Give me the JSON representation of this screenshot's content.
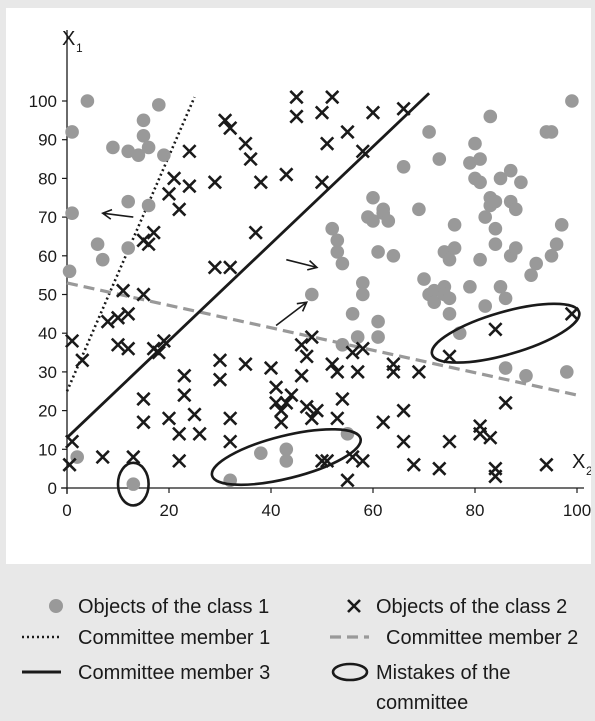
{
  "chart_data": {
    "type": "scatter",
    "axes": {
      "y_label_main": "X",
      "y_label_sub": "1",
      "x_label_main": "X",
      "x_label_sub": "2",
      "xlim": [
        0,
        100
      ],
      "ylim": [
        0,
        100
      ],
      "x_ticks": [
        0,
        20,
        40,
        60,
        80,
        100
      ],
      "y_ticks": [
        0,
        10,
        20,
        30,
        40,
        50,
        60,
        70,
        80,
        90,
        100
      ]
    },
    "colors": {
      "class1": "#999999",
      "class2": "#1a1a1a",
      "member1": "#1a1a1a",
      "member2": "#999999",
      "member3": "#1a1a1a"
    },
    "series": [
      {
        "name": "Objects of the class 1",
        "marker": "circle",
        "points": [
          [
            0.5,
            56
          ],
          [
            1,
            71
          ],
          [
            1,
            92
          ],
          [
            2,
            8
          ],
          [
            4,
            100
          ],
          [
            6,
            63
          ],
          [
            7,
            59
          ],
          [
            9,
            88
          ],
          [
            12,
            62
          ],
          [
            12,
            87
          ],
          [
            12,
            74
          ],
          [
            13,
            1
          ],
          [
            14,
            86
          ],
          [
            15,
            91
          ],
          [
            15,
            95
          ],
          [
            16,
            88
          ],
          [
            16,
            73
          ],
          [
            18,
            99
          ],
          [
            19,
            86
          ],
          [
            32,
            2
          ],
          [
            38,
            9
          ],
          [
            43,
            10
          ],
          [
            43,
            7
          ],
          [
            48,
            50
          ],
          [
            52,
            67
          ],
          [
            53,
            64
          ],
          [
            53,
            61
          ],
          [
            54,
            58
          ],
          [
            54,
            37
          ],
          [
            55,
            14
          ],
          [
            56,
            45
          ],
          [
            57,
            39
          ],
          [
            58,
            50
          ],
          [
            58,
            53
          ],
          [
            59,
            70
          ],
          [
            60,
            69
          ],
          [
            60,
            75
          ],
          [
            61,
            61
          ],
          [
            61,
            43
          ],
          [
            61,
            39
          ],
          [
            62,
            71
          ],
          [
            62,
            72
          ],
          [
            63,
            69
          ],
          [
            64,
            60
          ],
          [
            66,
            83
          ],
          [
            69,
            72
          ],
          [
            70,
            54
          ],
          [
            71,
            92
          ],
          [
            71,
            50
          ],
          [
            72,
            51
          ],
          [
            72,
            48
          ],
          [
            73,
            85
          ],
          [
            74,
            52
          ],
          [
            74,
            50
          ],
          [
            74,
            61
          ],
          [
            75,
            49
          ],
          [
            75,
            45
          ],
          [
            75,
            59
          ],
          [
            76,
            62
          ],
          [
            76,
            68
          ],
          [
            77,
            40
          ],
          [
            79,
            84
          ],
          [
            79,
            52
          ],
          [
            80,
            80
          ],
          [
            80,
            89
          ],
          [
            81,
            79
          ],
          [
            81,
            85
          ],
          [
            81,
            59
          ],
          [
            82,
            47
          ],
          [
            82,
            70
          ],
          [
            83,
            75
          ],
          [
            83,
            73
          ],
          [
            83,
            96
          ],
          [
            84,
            74
          ],
          [
            84,
            67
          ],
          [
            84,
            63
          ],
          [
            85,
            52
          ],
          [
            85,
            80
          ],
          [
            86,
            49
          ],
          [
            86,
            31
          ],
          [
            87,
            74
          ],
          [
            87,
            82
          ],
          [
            87,
            60
          ],
          [
            88,
            72
          ],
          [
            88,
            62
          ],
          [
            89,
            79
          ],
          [
            90,
            29
          ],
          [
            91,
            55
          ],
          [
            92,
            58
          ],
          [
            94,
            92
          ],
          [
            95,
            92
          ],
          [
            95,
            60
          ],
          [
            96,
            63
          ],
          [
            97,
            68
          ],
          [
            98,
            30
          ],
          [
            99,
            100
          ]
        ]
      },
      {
        "name": "Objects of the class 2",
        "marker": "cross",
        "points": [
          [
            0.5,
            6
          ],
          [
            1,
            12
          ],
          [
            1,
            38
          ],
          [
            3,
            33
          ],
          [
            7,
            8
          ],
          [
            8,
            43
          ],
          [
            10,
            44
          ],
          [
            10,
            37
          ],
          [
            11,
            51
          ],
          [
            12,
            45
          ],
          [
            12,
            36
          ],
          [
            13,
            8
          ],
          [
            15,
            17
          ],
          [
            15,
            23
          ],
          [
            15,
            50
          ],
          [
            15,
            64
          ],
          [
            16,
            63
          ],
          [
            17,
            66
          ],
          [
            17,
            36
          ],
          [
            18,
            35
          ],
          [
            19,
            38
          ],
          [
            20,
            18
          ],
          [
            20,
            76
          ],
          [
            21,
            80
          ],
          [
            22,
            72
          ],
          [
            22,
            14
          ],
          [
            22,
            7
          ],
          [
            23,
            29
          ],
          [
            23,
            24
          ],
          [
            24,
            78
          ],
          [
            24,
            87
          ],
          [
            25,
            19
          ],
          [
            26,
            14
          ],
          [
            29,
            57
          ],
          [
            29,
            79
          ],
          [
            30,
            28
          ],
          [
            30,
            33
          ],
          [
            31,
            95
          ],
          [
            32,
            18
          ],
          [
            32,
            12
          ],
          [
            32,
            57
          ],
          [
            32,
            93
          ],
          [
            35,
            89
          ],
          [
            35,
            32
          ],
          [
            36,
            85
          ],
          [
            37,
            66
          ],
          [
            38,
            79
          ],
          [
            40,
            31
          ],
          [
            41,
            26
          ],
          [
            41,
            22
          ],
          [
            42,
            17
          ],
          [
            42,
            20
          ],
          [
            43,
            81
          ],
          [
            43,
            22
          ],
          [
            44,
            24
          ],
          [
            45,
            101
          ],
          [
            45,
            96
          ],
          [
            46,
            37
          ],
          [
            46,
            29
          ],
          [
            47,
            21
          ],
          [
            47,
            34
          ],
          [
            48,
            39
          ],
          [
            48,
            18
          ],
          [
            49,
            20
          ],
          [
            50,
            7
          ],
          [
            50,
            79
          ],
          [
            50,
            97
          ],
          [
            51,
            89
          ],
          [
            51,
            7
          ],
          [
            52,
            101
          ],
          [
            52,
            32
          ],
          [
            53,
            30
          ],
          [
            53,
            18
          ],
          [
            54,
            23
          ],
          [
            55,
            92
          ],
          [
            56,
            35
          ],
          [
            55,
            2
          ],
          [
            56,
            8
          ],
          [
            57,
            30
          ],
          [
            58,
            7
          ],
          [
            58,
            87
          ],
          [
            58,
            36
          ],
          [
            60,
            97
          ],
          [
            62,
            17
          ],
          [
            64,
            30
          ],
          [
            64,
            32
          ],
          [
            66,
            20
          ],
          [
            66,
            12
          ],
          [
            66,
            98
          ],
          [
            68,
            6
          ],
          [
            69,
            30
          ],
          [
            73,
            5
          ],
          [
            75,
            12
          ],
          [
            75,
            34
          ],
          [
            81,
            16
          ],
          [
            81,
            14
          ],
          [
            83,
            13
          ],
          [
            84,
            41
          ],
          [
            84,
            5
          ],
          [
            84,
            3
          ],
          [
            86,
            22
          ],
          [
            94,
            6
          ],
          [
            99,
            45
          ]
        ]
      }
    ],
    "lines": [
      {
        "name": "Committee member 1",
        "style": "dotted",
        "x": [
          0,
          25
        ],
        "y": [
          25,
          101
        ]
      },
      {
        "name": "Committee member 2",
        "style": "dashed",
        "x": [
          0,
          100
        ],
        "y": [
          53,
          24
        ]
      },
      {
        "name": "Committee member 3",
        "style": "solid",
        "x": [
          0,
          71
        ],
        "y": [
          13,
          102
        ]
      }
    ],
    "mistake_ellipses": [
      {
        "cx": 13,
        "cy": 1,
        "rx": 3,
        "ry": 5.5,
        "angle": 0
      },
      {
        "cx": 43,
        "cy": 8,
        "rx": 15,
        "ry": 5.5,
        "angle": -14
      },
      {
        "cx": 86,
        "cy": 40,
        "rx": 15,
        "ry": 5.5,
        "angle": -16
      }
    ],
    "arrows": [
      {
        "x1": 13,
        "y1": 70,
        "x2": 7,
        "y2": 71
      },
      {
        "x1": 43,
        "y1": 59,
        "x2": 49,
        "y2": 57
      },
      {
        "x1": 41,
        "y1": 42,
        "x2": 47,
        "y2": 48
      }
    ],
    "legend": [
      {
        "marker": "circle",
        "label": "Objects of the class 1"
      },
      {
        "marker": "cross",
        "label": "Objects of the class 2"
      },
      {
        "marker": "dotted-line",
        "label": "Committee member 1"
      },
      {
        "marker": "dashed-line",
        "label": "Committee member 2"
      },
      {
        "marker": "solid-line",
        "label": "Committee member 3"
      },
      {
        "marker": "ellipse",
        "label": "Mistakes of the committee"
      }
    ]
  }
}
